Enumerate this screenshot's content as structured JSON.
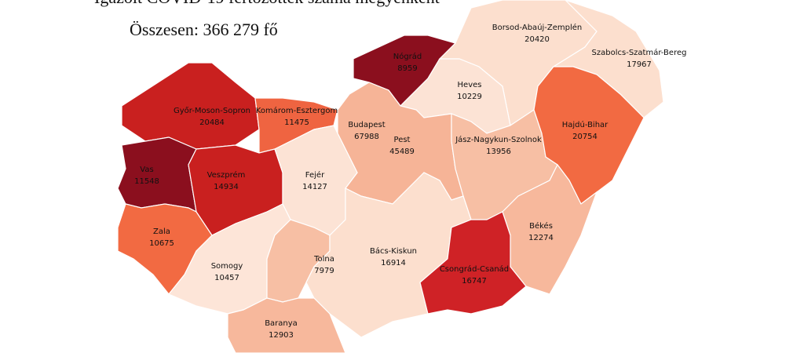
{
  "title": "Igazolt COVID-19 fertőzöttek száma megyénként",
  "subtitle": "Összesen: 366 279 fő",
  "regions": [
    {
      "name": "Nógrád",
      "value": 8959,
      "color": "#8b0f1e"
    },
    {
      "name": "Borsod-Abaúj-Zemplén",
      "value": 20420,
      "color": "#fcdfce"
    },
    {
      "name": "Szabolcs-Szatmár-Bereg",
      "value": 17967,
      "color": "#fcdfce"
    },
    {
      "name": "Heves",
      "value": 10229,
      "color": "#fce3d5"
    },
    {
      "name": "Győr-Moson-Sopron",
      "value": 20484,
      "color": "#c9201f"
    },
    {
      "name": "Komárom-Esztergom",
      "value": 11475,
      "color": "#ef6441"
    },
    {
      "name": "Budapest",
      "value": 67988,
      "color": "#ef6441"
    },
    {
      "name": "Pest",
      "value": 45489,
      "color": "#f6b497"
    },
    {
      "name": "Jász-Nagykun-Szolnok",
      "value": 13956,
      "color": "#f7bfa4"
    },
    {
      "name": "Hajdú-Bihar",
      "value": 20754,
      "color": "#f26a42"
    },
    {
      "name": "Vas",
      "value": 11548,
      "color": "#8b0f1e"
    },
    {
      "name": "Veszprém",
      "value": 14934,
      "color": "#c9201f"
    },
    {
      "name": "Fejér",
      "value": 14127,
      "color": "#fce3d5"
    },
    {
      "name": "Zala",
      "value": 10675,
      "color": "#f26a42"
    },
    {
      "name": "Békés",
      "value": 12274,
      "color": "#f7b89c"
    },
    {
      "name": "Somogy",
      "value": 10457,
      "color": "#fde5d8"
    },
    {
      "name": "Tolna",
      "value": 7979,
      "color": "#f7bfa4"
    },
    {
      "name": "Bács-Kiskun",
      "value": 16914,
      "color": "#fcdfce"
    },
    {
      "name": "Csongrád-Csanád",
      "value": 16747,
      "color": "#cf2226"
    },
    {
      "name": "Baranya",
      "value": 12903,
      "color": "#f7b89c"
    }
  ]
}
